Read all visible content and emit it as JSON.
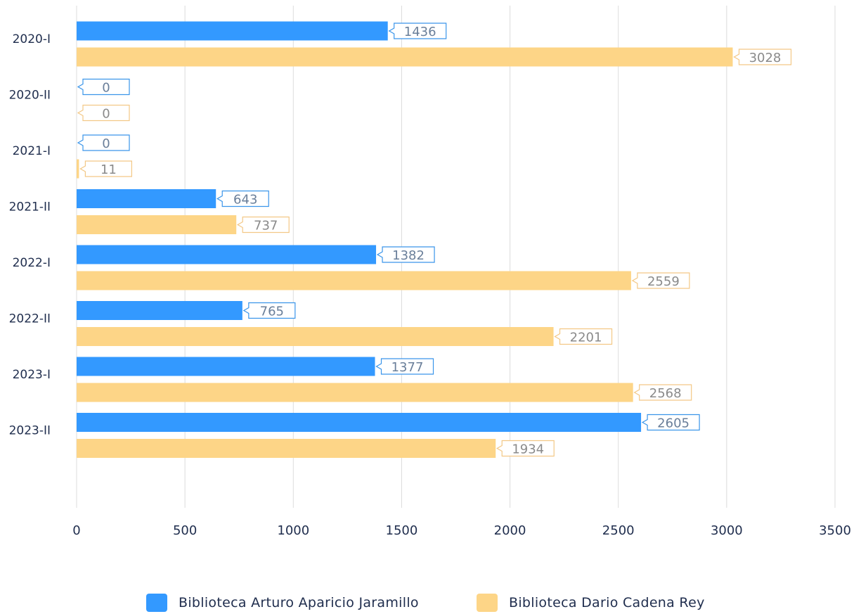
{
  "chart_data": {
    "type": "bar",
    "orientation": "horizontal",
    "categories": [
      "2020-I",
      "2020-II",
      "2021-I",
      "2021-II",
      "2022-I",
      "2022-II",
      "2023-I",
      "2023-II"
    ],
    "series": [
      {
        "name": "Biblioteca Arturo Aparicio Jaramillo",
        "color": "#3399ff",
        "values": [
          1436,
          0,
          0,
          643,
          1382,
          765,
          1377,
          2605
        ]
      },
      {
        "name": "Biblioteca Dario Cadena Rey",
        "color": "#fdd587",
        "values": [
          3028,
          0,
          11,
          737,
          2559,
          2201,
          2568,
          1934
        ]
      }
    ],
    "xlim": [
      0,
      3500
    ],
    "x_ticks": [
      0,
      500,
      1000,
      1500,
      2000,
      2500,
      3000,
      3500
    ],
    "grid": true,
    "data_labels": true,
    "legend": "bottom-center"
  }
}
